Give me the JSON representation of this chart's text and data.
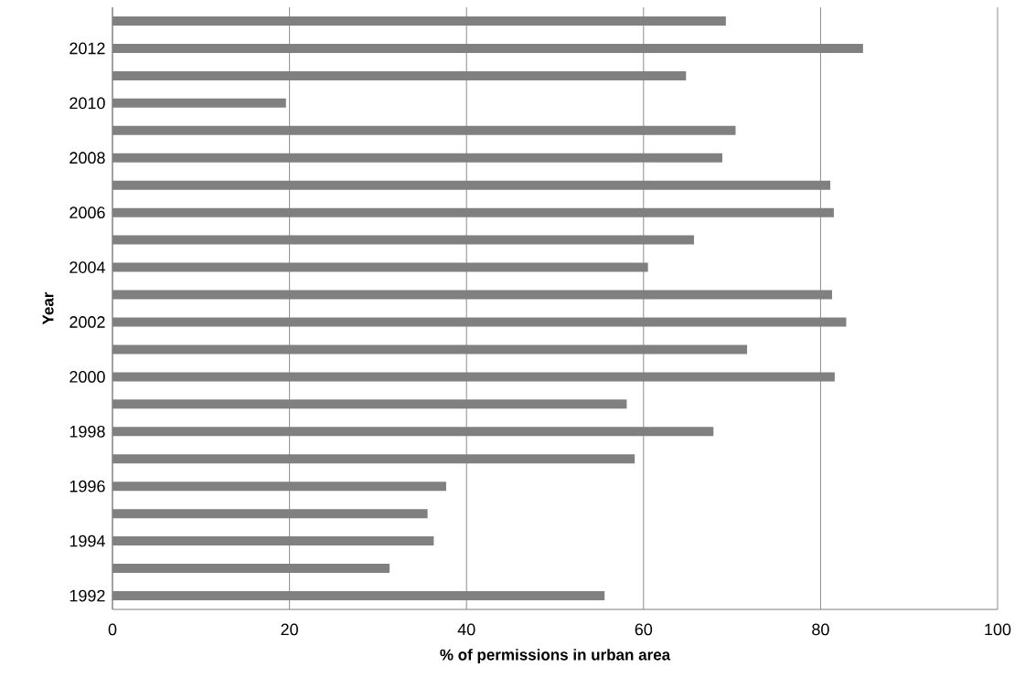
{
  "chart_data": {
    "type": "bar",
    "orientation": "horizontal",
    "xlabel": "% of permissions in urban area",
    "ylabel": "Year",
    "categories": [
      null,
      "2012",
      null,
      "2010",
      null,
      "2008",
      null,
      "2006",
      null,
      "2004",
      null,
      "2002",
      null,
      "2000",
      null,
      "1998",
      null,
      "1996",
      null,
      "1994",
      null,
      "1992"
    ],
    "values": [
      69.3,
      84.8,
      64.8,
      19.6,
      70.4,
      68.9,
      81.1,
      81.5,
      65.7,
      60.5,
      81.3,
      82.9,
      71.7,
      81.6,
      58.1,
      67.9,
      59.0,
      37.7,
      35.6,
      36.3,
      31.3,
      55.6
    ],
    "color": "#808080",
    "xlim": [
      0,
      100
    ],
    "xticks": [
      0,
      20,
      40,
      60,
      80,
      100
    ],
    "grid": "x"
  }
}
